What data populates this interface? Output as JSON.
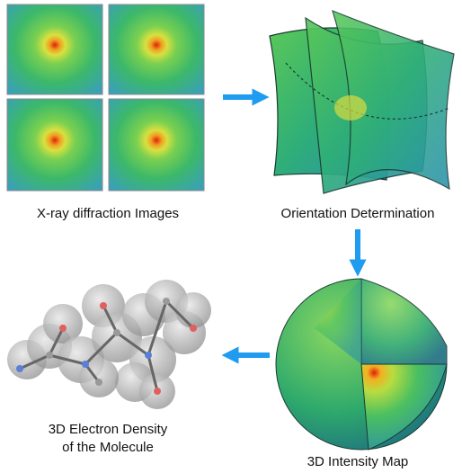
{
  "nodes": [
    {
      "label": "X-ray diffraction Images"
    },
    {
      "label": "Orientation Determination"
    },
    {
      "label": "3D Intensity Map"
    },
    {
      "lines": [
        "3D Electron Density",
        "of the Molecule"
      ]
    }
  ]
}
